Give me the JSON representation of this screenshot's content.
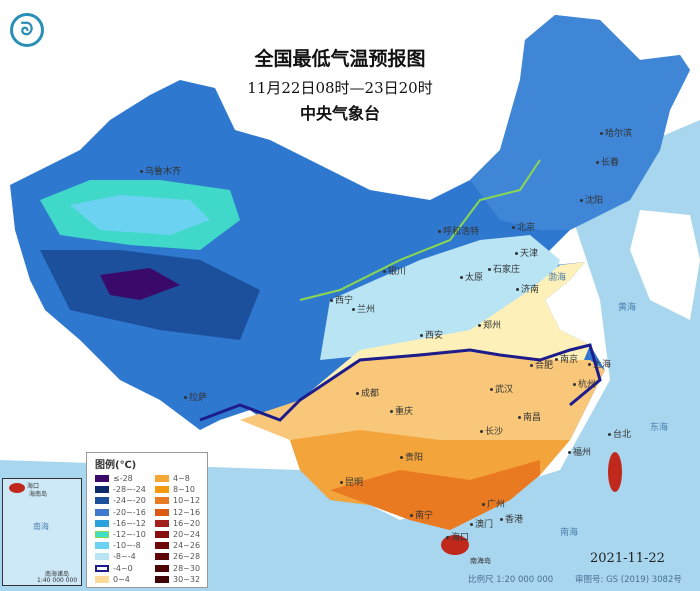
{
  "header": {
    "title": "全国最低气温预报图",
    "period": "11月22日08时—23日20时",
    "issuer": "中央气象台"
  },
  "logo": {
    "icon": "cma-logo-icon"
  },
  "colors": {
    "sea": "#a8d6ee",
    "warm": "#f3a43a",
    "cold": "#2f78cf",
    "zero_contour": "#1c1c8c",
    "tropic": "#c0281c"
  },
  "legend": {
    "title": "图例(℃)",
    "items": [
      {
        "label": "≤-28",
        "color": "#3a0a6a"
      },
      {
        "label": "-28~-24",
        "color": "#0d2a6b"
      },
      {
        "label": "-24~-20",
        "color": "#1c4f9c"
      },
      {
        "label": "-20~-16",
        "color": "#3f78cc"
      },
      {
        "label": "-16~-12",
        "color": "#2aa2dc"
      },
      {
        "label": "-12~-10",
        "color": "#40e0c8"
      },
      {
        "label": "-10~-8",
        "color": "#6cd2f2"
      },
      {
        "label": "-8~-4",
        "color": "#b8e4f4"
      },
      {
        "label": "-4~0",
        "color": "#ffffff"
      },
      {
        "label": "0~4",
        "color": "#fdd99a"
      },
      {
        "label": "4~8",
        "color": "#f5a836"
      },
      {
        "label": "8~10",
        "color": "#f49a10"
      },
      {
        "label": "10~12",
        "color": "#ea7a22"
      },
      {
        "label": "12~16",
        "color": "#dd5a14"
      },
      {
        "label": "16~20",
        "color": "#a3201a"
      },
      {
        "label": "20~24",
        "color": "#8a0e0e"
      },
      {
        "label": "24~26",
        "color": "#6e0808"
      },
      {
        "label": "26~28",
        "color": "#5e0606"
      },
      {
        "label": "28~30",
        "color": "#4e0404"
      },
      {
        "label": "30~32",
        "color": "#400202"
      }
    ]
  },
  "cities": [
    "乌鲁木齐",
    "哈尔滨",
    "长春",
    "沈阳",
    "呼和浩特",
    "北京",
    "天津",
    "银川",
    "太原",
    "石家庄",
    "济南",
    "西宁",
    "兰州",
    "西安",
    "郑州",
    "合肥",
    "南京",
    "上海",
    "杭州",
    "武汉",
    "成都",
    "重庆",
    "南昌",
    "长沙",
    "拉萨",
    "贵阳",
    "福州",
    "台北",
    "昆明",
    "南宁",
    "广州",
    "香港",
    "澳门",
    "海口"
  ],
  "seas": [
    "渤海",
    "黄海",
    "东海",
    "南海",
    "南海岛"
  ],
  "inset": {
    "labels": [
      "海口",
      "海南岛",
      "南海",
      "南海诸岛",
      "1:40 000 000"
    ]
  },
  "footer": {
    "date": "2021-11-22",
    "scale": "比例尺 1:20 000 000",
    "review": "审图号: GS (2019) 3082号"
  }
}
